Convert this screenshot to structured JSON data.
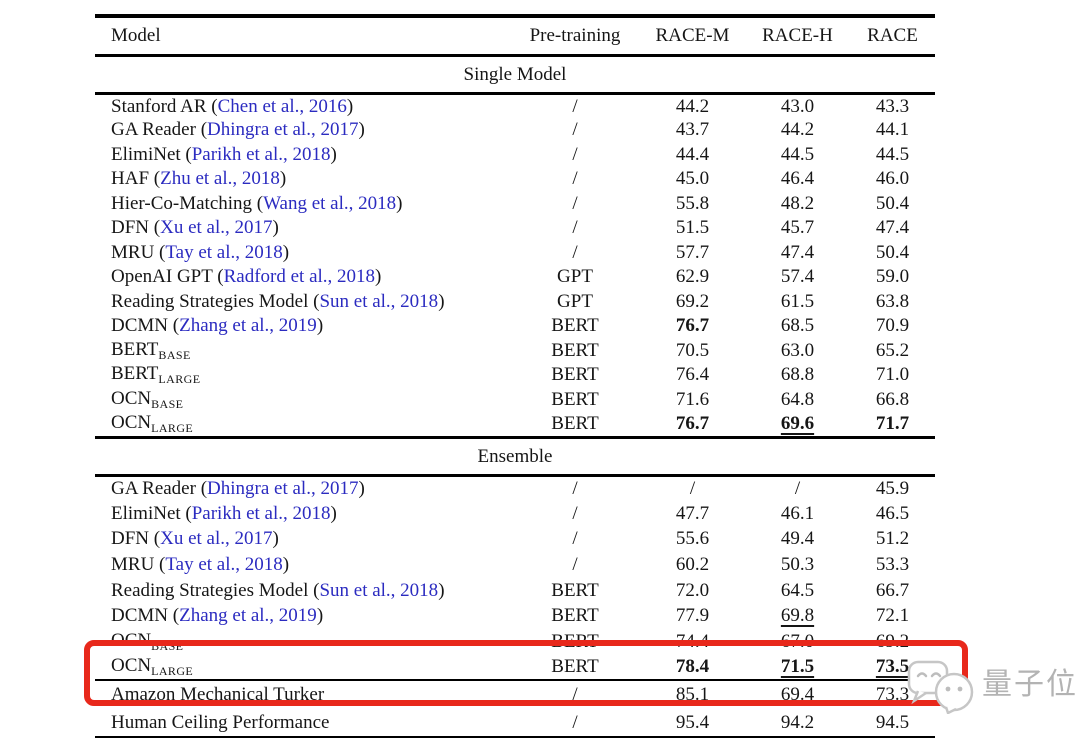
{
  "link_color": "#2b2bc0",
  "annotation": {
    "type": "highlight-box",
    "color": "#e8281b",
    "highlights": [
      "OCN LARGE (Ensemble)",
      "Amazon Mechanical Turker"
    ]
  },
  "watermark": {
    "text": "量子位",
    "color": "#b3b3b3",
    "logo": "qbitai-chat-bubbles-icon"
  },
  "table": {
    "columns": [
      "Model",
      "Pre-training",
      "RACE-M",
      "RACE-H",
      "RACE"
    ],
    "sections": [
      {
        "title": "Single Model",
        "rule_after": "thick",
        "rows": [
          {
            "model": {
              "name": "Stanford AR",
              "citation": "Chen et al., 2016"
            },
            "pretraining": "/",
            "scores": [
              "44.2",
              "43.0",
              "43.3"
            ]
          },
          {
            "model": {
              "name": "GA Reader",
              "citation": "Dhingra et al., 2017"
            },
            "pretraining": "/",
            "scores": [
              "43.7",
              "44.2",
              "44.1"
            ]
          },
          {
            "model": {
              "name": "ElimiNet",
              "citation": "Parikh et al., 2018"
            },
            "pretraining": "/",
            "scores": [
              "44.4",
              "44.5",
              "44.5"
            ]
          },
          {
            "model": {
              "name": "HAF",
              "citation": "Zhu et al., 2018"
            },
            "pretraining": "/",
            "scores": [
              "45.0",
              "46.4",
              "46.0"
            ]
          },
          {
            "model": {
              "name": "Hier-Co-Matching",
              "citation": "Wang et al., 2018"
            },
            "pretraining": "/",
            "scores": [
              "55.8",
              "48.2",
              "50.4"
            ]
          },
          {
            "model": {
              "name": "DFN",
              "citation": "Xu et al., 2017"
            },
            "pretraining": "/",
            "scores": [
              "51.5",
              "45.7",
              "47.4"
            ]
          },
          {
            "model": {
              "name": "MRU",
              "citation": "Tay et al., 2018"
            },
            "pretraining": "/",
            "scores": [
              "57.7",
              "47.4",
              "50.4"
            ]
          },
          {
            "model": {
              "name": "OpenAI GPT",
              "citation": "Radford et al., 2018"
            },
            "pretraining": "GPT",
            "scores": [
              "62.9",
              "57.4",
              "59.0"
            ]
          },
          {
            "model": {
              "name": "Reading Strategies Model",
              "citation": "Sun et al., 2018"
            },
            "pretraining": "GPT",
            "scores": [
              "69.2",
              "61.5",
              "63.8"
            ]
          },
          {
            "model": {
              "name": "DCMN",
              "citation": "Zhang et al., 2019"
            },
            "pretraining": "BERT",
            "scores": [
              {
                "text": "76.7",
                "bold": true
              },
              "68.5",
              "70.9"
            ]
          },
          {
            "model": {
              "name": "BERT",
              "subscript": "BASE"
            },
            "pretraining": "BERT",
            "scores": [
              "70.5",
              "63.0",
              "65.2"
            ]
          },
          {
            "model": {
              "name": "BERT",
              "subscript": "LARGE"
            },
            "pretraining": "BERT",
            "scores": [
              "76.4",
              "68.8",
              "71.0"
            ]
          },
          {
            "model": {
              "name": "OCN",
              "subscript": "BASE"
            },
            "pretraining": "BERT",
            "scores": [
              "71.6",
              "64.8",
              "66.8"
            ]
          },
          {
            "model": {
              "name": "OCN",
              "subscript": "LARGE"
            },
            "pretraining": "BERT",
            "scores": [
              {
                "text": "76.7",
                "bold": true
              },
              {
                "text": "69.6",
                "bold": true,
                "underline": true
              },
              {
                "text": "71.7",
                "bold": true
              }
            ]
          }
        ]
      },
      {
        "title": "Ensemble",
        "rule_after": "thin",
        "rows": [
          {
            "model": {
              "name": "GA Reader",
              "citation": "Dhingra et al., 2017"
            },
            "pretraining": "/",
            "scores": [
              "/",
              "/",
              "45.9"
            ]
          },
          {
            "model": {
              "name": "ElimiNet",
              "citation": "Parikh et al., 2018"
            },
            "pretraining": "/",
            "scores": [
              "47.7",
              "46.1",
              "46.5"
            ]
          },
          {
            "model": {
              "name": "DFN",
              "citation": "Xu et al., 2017"
            },
            "pretraining": "/",
            "scores": [
              "55.6",
              "49.4",
              "51.2"
            ]
          },
          {
            "model": {
              "name": "MRU",
              "citation": "Tay et al., 2018"
            },
            "pretraining": "/",
            "scores": [
              "60.2",
              "50.3",
              "53.3"
            ]
          },
          {
            "model": {
              "name": "Reading Strategies Model",
              "citation": "Sun et al., 2018"
            },
            "pretraining": "BERT",
            "scores": [
              "72.0",
              "64.5",
              "66.7"
            ]
          },
          {
            "model": {
              "name": "DCMN",
              "citation": "Zhang et al., 2019"
            },
            "pretraining": "BERT",
            "scores": [
              "77.9",
              {
                "text": "69.8",
                "underline": true
              },
              "72.1"
            ]
          },
          {
            "model": {
              "name": "OCN",
              "subscript": "BASE"
            },
            "pretraining": "BERT",
            "scores": [
              "74.4",
              "67.0",
              "69.2"
            ]
          },
          {
            "model": {
              "name": "OCN",
              "subscript": "LARGE"
            },
            "pretraining": "BERT",
            "scores": [
              {
                "text": "78.4",
                "bold": true
              },
              {
                "text": "71.5",
                "bold": true,
                "underline": true
              },
              {
                "text": "73.5",
                "bold": true,
                "underline": true
              }
            ]
          }
        ]
      },
      {
        "title": null,
        "rule_after": "none",
        "rows": [
          {
            "model": {
              "name": "Amazon Mechanical Turker"
            },
            "pretraining": "/",
            "scores": [
              "85.1",
              "69.4",
              "73.3"
            ]
          },
          {
            "model": {
              "name": "Human Ceiling Performance"
            },
            "pretraining": "/",
            "scores": [
              "95.4",
              "94.2",
              "94.5"
            ]
          }
        ]
      }
    ]
  }
}
